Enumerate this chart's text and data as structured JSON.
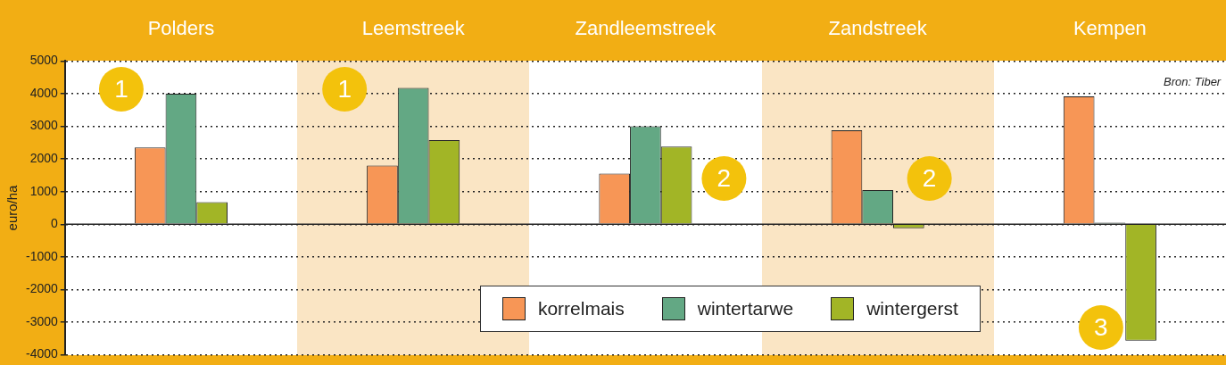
{
  "chart_data": {
    "type": "bar",
    "categories": [
      "Polders",
      "Leemstreek",
      "Zandleemstreek",
      "Zandstreek",
      "Kempen"
    ],
    "ylabel": "euro/ha",
    "series": [
      {
        "name": "korrelmais",
        "color": "#f79656",
        "values": [
          2350,
          1800,
          1550,
          2880,
          3920
        ]
      },
      {
        "name": "wintertarwe",
        "color": "#63a884",
        "values": [
          4000,
          4180,
          3000,
          1050,
          50
        ]
      },
      {
        "name": "wintergerst",
        "color": "#a2b526",
        "values": [
          680,
          2580,
          2380,
          -120,
          -3570
        ]
      }
    ],
    "ylim": [
      -4000,
      5000
    ],
    "yticks": [
      -4000,
      -3000,
      -2000,
      -1000,
      0,
      1000,
      2000,
      3000,
      4000,
      5000
    ],
    "grid": "y",
    "legend": "bottom",
    "annotations": [
      "1",
      "1",
      "2",
      "2",
      "3",
      "Bron: Tiber"
    ]
  }
}
